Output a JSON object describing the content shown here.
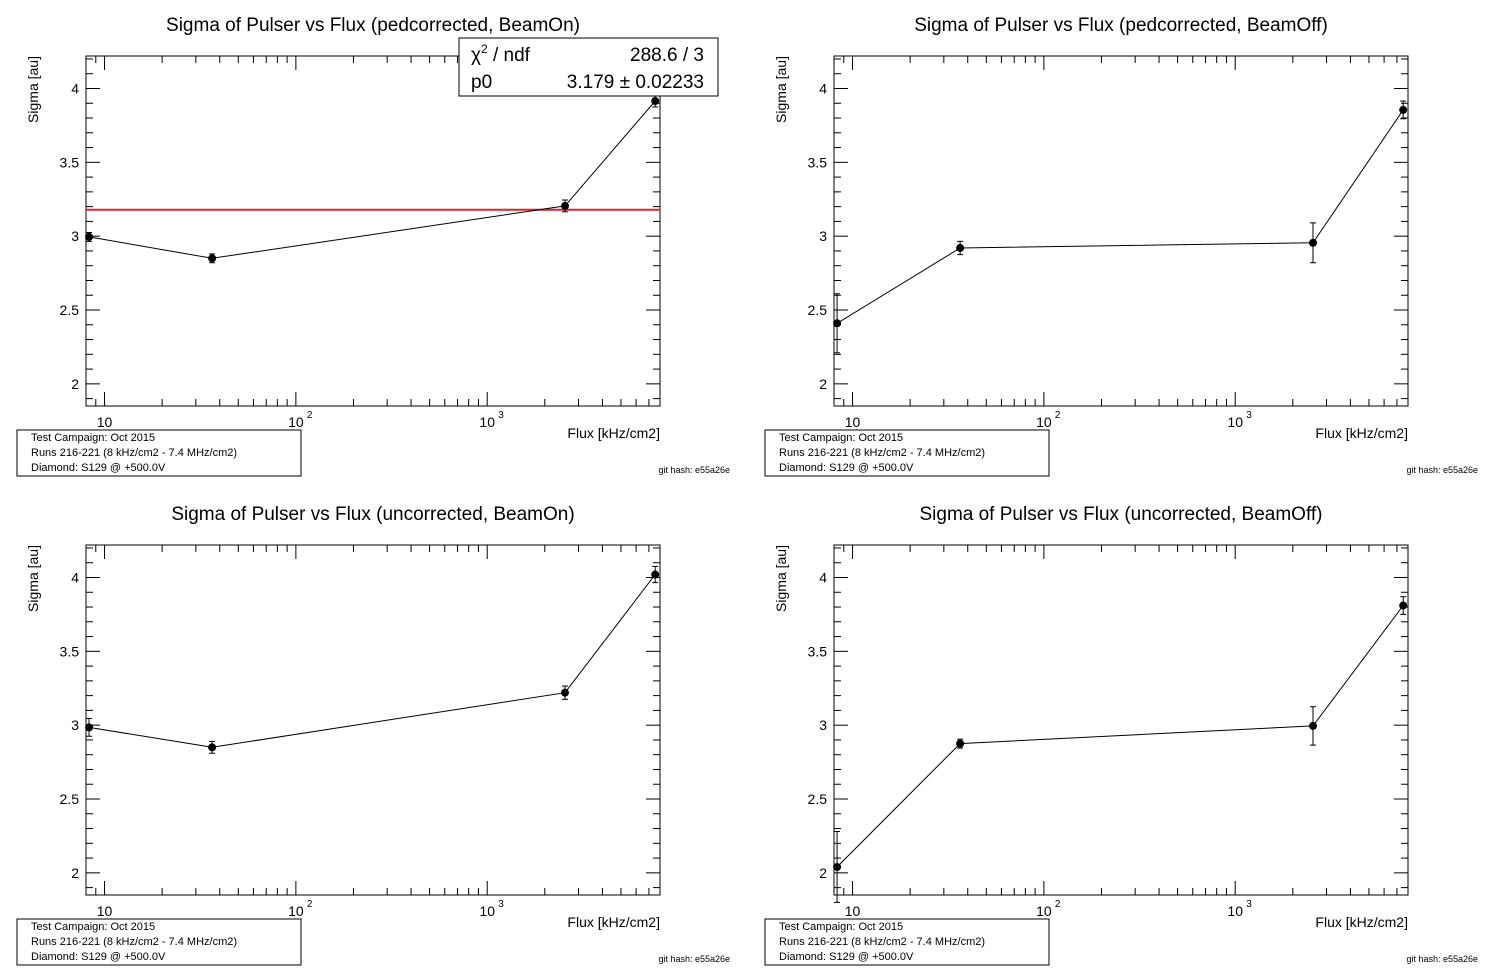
{
  "chart_data": [
    {
      "type": "scatter",
      "title": "Sigma of Pulser vs Flux (pedcorrected, BeamOn)",
      "xlabel": "Flux [kHz/cm2]",
      "ylabel": "Sigma [au]",
      "x_scale": "log",
      "xlim": [
        8,
        8000
      ],
      "ylim": [
        1.85,
        4.22
      ],
      "yticks": [
        "2",
        "2.5",
        "3",
        "3.5",
        "4"
      ],
      "xticks": [
        "10",
        "10",
        "10"
      ],
      "xtick_exponents": [
        "",
        "2",
        "3"
      ],
      "series": [
        {
          "x": [
            8.3,
            36.5,
            2550,
            7550
          ],
          "y": [
            2.995,
            2.85,
            3.205,
            3.915
          ],
          "yerr": [
            0.03,
            0.03,
            0.04,
            0.04
          ]
        }
      ],
      "fit": {
        "value": 3.179,
        "color": "#d8262b",
        "chi2_label": "χ",
        "chi2_sup": "2",
        "chi2_rest": " / ndf",
        "chi2_value": "288.6 / 3",
        "p0_label": "p0",
        "p0_value": "3.179 ± 0.02233"
      },
      "info": [
        "Test Campaign: Oct 2015",
        "Runs 216-221 (8 kHz/cm2 - 7.4 MHz/cm2)",
        "Diamond: S129 @ +500.0V"
      ],
      "githash": "git hash: e55a26e"
    },
    {
      "type": "scatter",
      "title": "Sigma of Pulser vs Flux (pedcorrected, BeamOff)",
      "xlabel": "Flux [kHz/cm2]",
      "ylabel": "Sigma [au]",
      "x_scale": "log",
      "xlim": [
        8,
        8000
      ],
      "ylim": [
        1.85,
        4.22
      ],
      "yticks": [
        "2",
        "2.5",
        "3",
        "3.5",
        "4"
      ],
      "xticks": [
        "10",
        "10",
        "10"
      ],
      "xtick_exponents": [
        "",
        "2",
        "3"
      ],
      "series": [
        {
          "x": [
            8.3,
            36.5,
            2550,
            7550
          ],
          "y": [
            2.41,
            2.92,
            2.955,
            3.855
          ],
          "yerr": [
            0.2,
            0.045,
            0.135,
            0.06
          ]
        }
      ],
      "info": [
        "Test Campaign: Oct 2015",
        "Runs 216-221 (8 kHz/cm2 - 7.4 MHz/cm2)",
        "Diamond: S129 @ +500.0V"
      ],
      "githash": "git hash: e55a26e"
    },
    {
      "type": "scatter",
      "title": "Sigma of Pulser vs Flux (uncorrected, BeamOn)",
      "xlabel": "Flux [kHz/cm2]",
      "ylabel": "Sigma [au]",
      "x_scale": "log",
      "xlim": [
        8,
        8000
      ],
      "ylim": [
        1.85,
        4.22
      ],
      "yticks": [
        "2",
        "2.5",
        "3",
        "3.5",
        "4"
      ],
      "xticks": [
        "10",
        "10",
        "10"
      ],
      "xtick_exponents": [
        "",
        "2",
        "3"
      ],
      "series": [
        {
          "x": [
            8.3,
            36.5,
            2550,
            7550
          ],
          "y": [
            2.985,
            2.85,
            3.22,
            4.02
          ],
          "yerr": [
            0.06,
            0.04,
            0.045,
            0.055
          ]
        }
      ],
      "info": [
        "Test Campaign: Oct 2015",
        "Runs 216-221 (8 kHz/cm2 - 7.4 MHz/cm2)",
        "Diamond: S129 @ +500.0V"
      ],
      "githash": "git hash: e55a26e"
    },
    {
      "type": "scatter",
      "title": "Sigma of Pulser vs Flux (uncorrected, BeamOff)",
      "xlabel": "Flux [kHz/cm2]",
      "ylabel": "Sigma [au]",
      "x_scale": "log",
      "xlim": [
        8,
        8000
      ],
      "ylim": [
        1.85,
        4.22
      ],
      "yticks": [
        "2",
        "2.5",
        "3",
        "3.5",
        "4"
      ],
      "xticks": [
        "10",
        "10",
        "10"
      ],
      "xtick_exponents": [
        "",
        "2",
        "3"
      ],
      "series": [
        {
          "x": [
            8.3,
            36.5,
            2550,
            7550
          ],
          "y": [
            2.04,
            2.875,
            2.995,
            3.81
          ],
          "yerr": [
            0.24,
            0.03,
            0.13,
            0.06
          ]
        }
      ],
      "info": [
        "Test Campaign: Oct 2015",
        "Runs 216-221 (8 kHz/cm2 - 7.4 MHz/cm2)",
        "Diamond: S129 @ +500.0V"
      ],
      "githash": "git hash: e55a26e"
    }
  ]
}
